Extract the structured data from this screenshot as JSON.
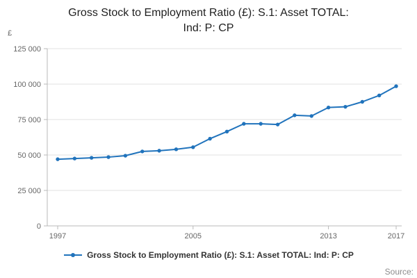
{
  "header": {
    "title_lines": [
      "Gross Stock to Employment Ratio (£): S.1: Asset TOTAL:",
      "Ind: P: CP"
    ]
  },
  "legend": {
    "label": "Gross Stock to Employment Ratio (£): S.1: Asset TOTAL: Ind: P: CP"
  },
  "footer": {
    "source_label": "Source:"
  },
  "chart_data": {
    "type": "line",
    "title": "Gross Stock to Employment Ratio (£): S.1: Asset TOTAL: Ind: P: CP",
    "ylabel": "£",
    "xlabel": "",
    "x": [
      1997,
      1998,
      1999,
      2000,
      2001,
      2002,
      2003,
      2004,
      2005,
      2006,
      2007,
      2008,
      2009,
      2010,
      2011,
      2012,
      2013,
      2014,
      2015,
      2016,
      2017
    ],
    "values": [
      47000,
      47500,
      48000,
      48500,
      49500,
      52500,
      53000,
      54000,
      55500,
      61500,
      66500,
      72000,
      72000,
      71500,
      78000,
      77500,
      83500,
      84000,
      87500,
      92000,
      98500
    ],
    "xlim": [
      1997,
      2017
    ],
    "ylim": [
      0,
      125000
    ],
    "yticks": [
      0,
      25000,
      50000,
      75000,
      100000,
      125000
    ],
    "ytick_labels": [
      "0",
      "25 000",
      "50 000",
      "75 000",
      "100 000",
      "125 000"
    ],
    "xticks": [
      1997,
      2005,
      2013,
      2017
    ],
    "xtick_labels": [
      "1997",
      "2005",
      "2013",
      "2017"
    ],
    "grid": true,
    "legend_position": "bottom",
    "series_name": "Gross Stock to Employment Ratio (£): S.1: Asset TOTAL: Ind: P: CP",
    "line_color": "#2073bc",
    "marker": "circle"
  }
}
